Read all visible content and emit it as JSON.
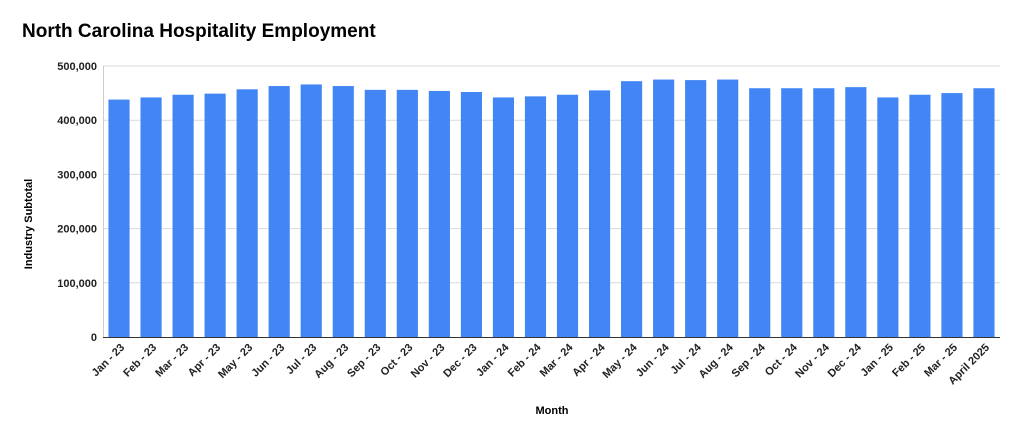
{
  "chart_data": {
    "type": "bar",
    "title": "North Carolina Hospitality Employment",
    "xlabel": "Month",
    "ylabel": "Industry Subtotal",
    "categories": [
      "Jan - 23",
      "Feb - 23",
      "Mar - 23",
      "Apr - 23",
      "May - 23",
      "Jun - 23",
      "Jul - 23",
      "Aug - 23",
      "Sep - 23",
      "Oct - 23",
      "Nov - 23",
      "Dec - 23",
      "Jan - 24",
      "Feb - 24",
      "Mar - 24",
      "Apr - 24",
      "May - 24",
      "Jun - 24",
      "Jul - 24",
      "Aug - 24",
      "Sep - 24",
      "Oct - 24",
      "Nov - 24",
      "Dec - 24",
      "Jan - 25",
      "Feb - 25",
      "Mar - 25",
      "April 2025"
    ],
    "series": [
      {
        "values": [
          438000,
          442000,
          447000,
          449000,
          457000,
          463000,
          466000,
          463000,
          456000,
          456000,
          454000,
          452000,
          442000,
          444000,
          447000,
          455000,
          472000,
          475000,
          474000,
          475000,
          459000,
          459000,
          459000,
          461000,
          442000,
          447000,
          450000,
          459000
        ],
        "color": "#4285F4"
      }
    ],
    "ylim": [
      0,
      500000
    ],
    "yticks": [
      0,
      100000,
      200000,
      300000,
      400000,
      500000
    ],
    "ytick_labels": [
      "0",
      "100,000",
      "200,000",
      "300,000",
      "400,000",
      "500,000"
    ],
    "grid": true,
    "legend": "none"
  }
}
